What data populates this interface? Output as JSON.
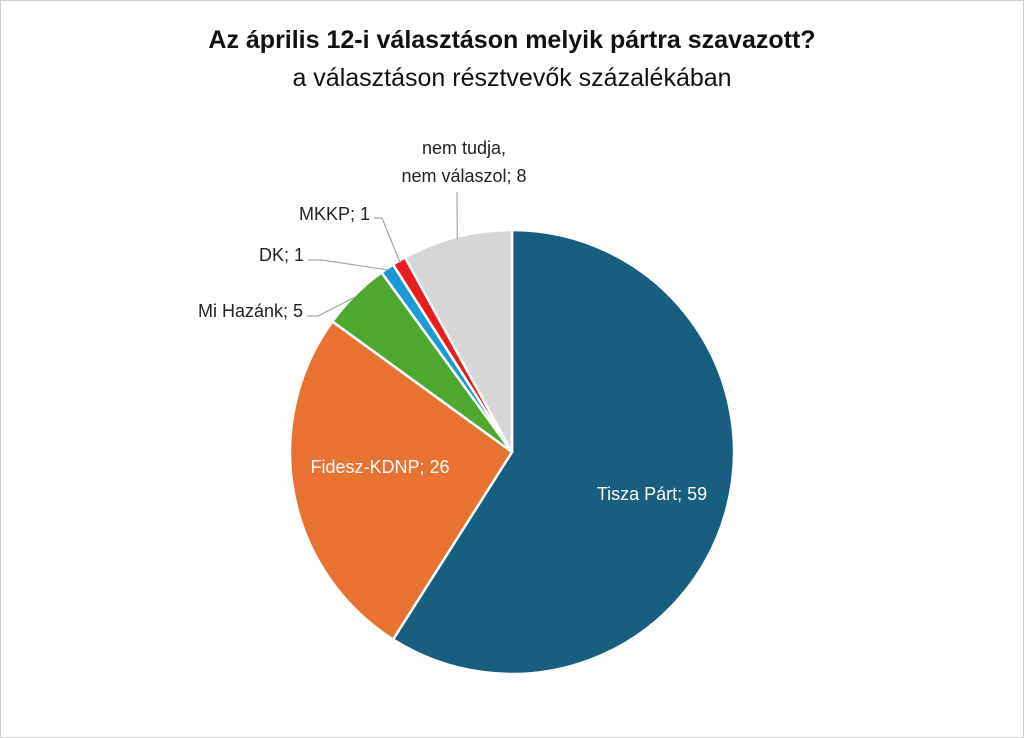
{
  "chart_data": {
    "type": "pie",
    "title": "Az április 12-i választáson melyik pártra szavazott?",
    "subtitle": "a választáson résztvevők százalékában",
    "slices": [
      {
        "name": "Tisza Párt",
        "value": 59,
        "color": "#175e80",
        "label": "Tisza Párt; 59"
      },
      {
        "name": "Fidesz-KDNP",
        "value": 26,
        "color": "#e97132",
        "label": "Fidesz-KDNP; 26"
      },
      {
        "name": "Mi Hazánk",
        "value": 5,
        "color": "#4ea72e",
        "label": "Mi Hazánk; 5"
      },
      {
        "name": "DK",
        "value": 1,
        "color": "#1a9ad6",
        "label": "DK; 1"
      },
      {
        "name": "MKKP",
        "value": 1,
        "color": "#e81d1d",
        "label": "MKKP; 1"
      },
      {
        "name": "nem tudja, nem válaszol",
        "value": 8,
        "color": "#d6d6d6",
        "label_lines": [
          "nem tudja,",
          "nem válaszol; 8"
        ]
      }
    ]
  }
}
